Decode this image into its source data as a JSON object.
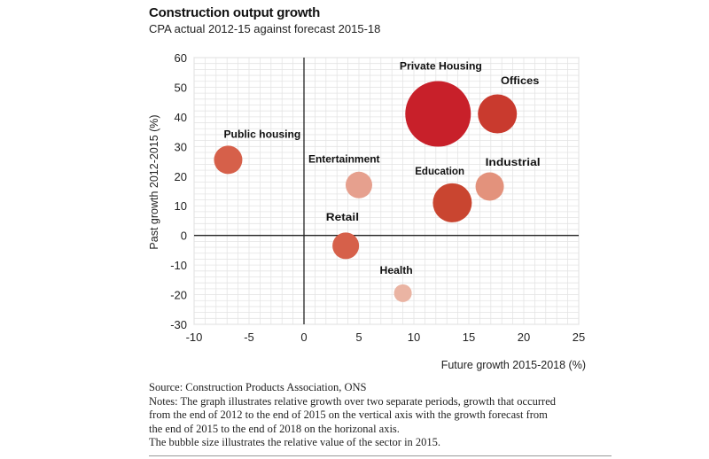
{
  "chart_data": {
    "type": "scatter",
    "title": "Construction output growth",
    "subtitle": "CPA actual 2012-15 against forecast 2015-18",
    "xlabel": "Future growth 2015-2018 (%)",
    "ylabel": "Past growth 2012-2015 (%)",
    "xlim": [
      -10,
      25
    ],
    "ylim": [
      -30,
      60
    ],
    "xticks": [
      -10,
      -5,
      0,
      5,
      10,
      15,
      20,
      25
    ],
    "yticks": [
      -30,
      -20,
      -10,
      0,
      10,
      20,
      30,
      40,
      50,
      60
    ],
    "grid": true,
    "points": [
      {
        "label": "Private Housing",
        "x": 12.2,
        "y": 41,
        "size": 37,
        "color": "#c8202a",
        "label_x": 8.7,
        "label_y": 56
      },
      {
        "label": "Offices",
        "x": 17.6,
        "y": 41,
        "size": 22,
        "color": "#c93a2e",
        "label_x": 17.9,
        "label_y": 51
      },
      {
        "label": "Public housing",
        "x": -6.9,
        "y": 25.5,
        "size": 16,
        "color": "#d6604a",
        "label_x": -7.3,
        "label_y": 33
      },
      {
        "label": "Entertainment",
        "x": 5.0,
        "y": 17,
        "size": 15,
        "color": "#e6a08e",
        "label_x": 0.4,
        "label_y": 24.5
      },
      {
        "label": "Education",
        "x": 13.5,
        "y": 11,
        "size": 22,
        "color": "#c94530",
        "label_x": 10.1,
        "label_y": 20.5
      },
      {
        "label": "Industrial",
        "x": 16.9,
        "y": 16.5,
        "size": 16,
        "color": "#e3927c",
        "label_x": 16.5,
        "label_y": 23.5
      },
      {
        "label": "Retail",
        "x": 3.8,
        "y": -3.5,
        "size": 15,
        "color": "#d6604a",
        "label_x": 2.0,
        "label_y": 5
      },
      {
        "label": "Health",
        "x": 9.0,
        "y": -19.5,
        "size": 10,
        "color": "#eab4a3",
        "label_x": 6.9,
        "label_y": -13
      }
    ]
  },
  "notes": {
    "source": "Source: Construction Products Association, ONS",
    "line1": "Notes: The graph illustrates relative growth over two separate periods, growth that occurred",
    "line2": "from the end of 2012 to the end of 2015 on the vertical axis with the growth forecast from",
    "line3": "the end of 2015 to the end of 2018 on the horizonal axis.",
    "line4": "The bubble size illustrates the relative value of the sector in 2015."
  }
}
